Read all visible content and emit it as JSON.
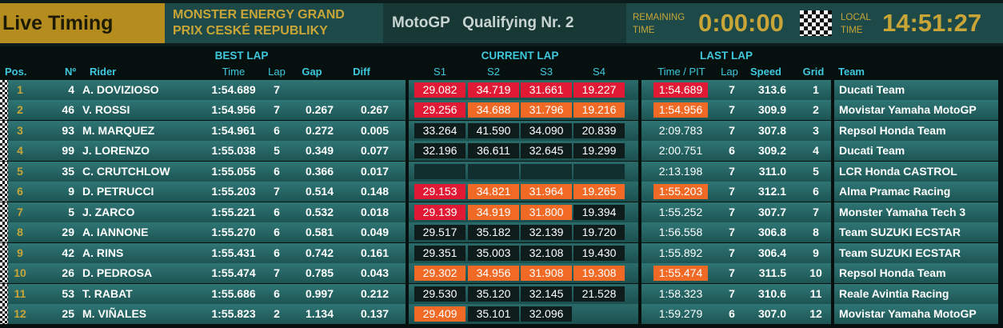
{
  "header": {
    "title": "Live Timing",
    "event_line1": "MONSTER ENERGY GRAND",
    "event_line2": "PRIX CESKÉ REPUBLIKY",
    "category": "MotoGP",
    "session": "Qualifying Nr. 2",
    "remaining_label_1": "REMAINING",
    "remaining_label_2": "TIME",
    "remaining_time": "0:00:00",
    "flag_icon": "checkered-flag-icon",
    "local_label_1": "LOCAL",
    "local_label_2": "TIME",
    "local_time": "14:51:27"
  },
  "groups": {
    "best_lap": "BEST LAP",
    "current_lap": "CURRENT LAP",
    "last_lap": "LAST LAP"
  },
  "columns": {
    "pos": "Pos.",
    "num": "Nº",
    "rider": "Rider",
    "best_time": "Time",
    "best_lap": "Lap",
    "gap": "Gap",
    "diff": "Diff",
    "s1": "S1",
    "s2": "S2",
    "s3": "S3",
    "s4": "S4",
    "time_pit": "Time / PIT",
    "last_lap": "Lap",
    "speed": "Speed",
    "grid": "Grid",
    "team": "Team"
  },
  "status_colors": {
    "red": "#e01a34",
    "orange": "#f06a26",
    "dark": "#0f1c1c",
    "empty": "#102f2e"
  },
  "rows": [
    {
      "pos": "1",
      "num": "4",
      "rider": "A. DOVIZIOSO",
      "best_time": "1:54.689",
      "best_lap": "7",
      "gap": "",
      "diff": "",
      "sectors": [
        {
          "t": "29.082",
          "s": "red"
        },
        {
          "t": "34.719",
          "s": "red"
        },
        {
          "t": "31.661",
          "s": "red"
        },
        {
          "t": "19.227",
          "s": "red"
        }
      ],
      "last_time": "1:54.689",
      "last_status": "red",
      "last_lap": "7",
      "speed": "313.6",
      "grid": "1",
      "team": "Ducati Team"
    },
    {
      "pos": "2",
      "num": "46",
      "rider": "V. ROSSI",
      "best_time": "1:54.956",
      "best_lap": "7",
      "gap": "0.267",
      "diff": "0.267",
      "sectors": [
        {
          "t": "29.256",
          "s": "red"
        },
        {
          "t": "34.688",
          "s": "orange"
        },
        {
          "t": "31.796",
          "s": "orange"
        },
        {
          "t": "19.216",
          "s": "orange"
        }
      ],
      "last_time": "1:54.956",
      "last_status": "orange",
      "last_lap": "7",
      "speed": "309.9",
      "grid": "2",
      "team": "Movistar Yamaha MotoGP"
    },
    {
      "pos": "3",
      "num": "93",
      "rider": "M. MARQUEZ",
      "best_time": "1:54.961",
      "best_lap": "6",
      "gap": "0.272",
      "diff": "0.005",
      "sectors": [
        {
          "t": "33.264",
          "s": "dark"
        },
        {
          "t": "41.590",
          "s": "dark"
        },
        {
          "t": "34.090",
          "s": "dark"
        },
        {
          "t": "20.839",
          "s": "dark"
        }
      ],
      "last_time": "2:09.783",
      "last_status": "",
      "last_lap": "7",
      "speed": "307.8",
      "grid": "3",
      "team": "Repsol Honda Team"
    },
    {
      "pos": "4",
      "num": "99",
      "rider": "J. LORENZO",
      "best_time": "1:55.038",
      "best_lap": "5",
      "gap": "0.349",
      "diff": "0.077",
      "sectors": [
        {
          "t": "32.196",
          "s": "dark"
        },
        {
          "t": "36.611",
          "s": "dark"
        },
        {
          "t": "32.645",
          "s": "dark"
        },
        {
          "t": "19.299",
          "s": "dark"
        }
      ],
      "last_time": "2:00.751",
      "last_status": "",
      "last_lap": "6",
      "speed": "309.2",
      "grid": "4",
      "team": "Ducati Team"
    },
    {
      "pos": "5",
      "num": "35",
      "rider": "C. CRUTCHLOW",
      "best_time": "1:55.055",
      "best_lap": "6",
      "gap": "0.366",
      "diff": "0.017",
      "sectors": [
        {
          "t": "",
          "s": "empty"
        },
        {
          "t": "",
          "s": "empty"
        },
        {
          "t": "",
          "s": "empty"
        },
        {
          "t": "",
          "s": "empty"
        }
      ],
      "last_time": "2:13.198",
      "last_status": "",
      "last_lap": "7",
      "speed": "311.0",
      "grid": "5",
      "team": "LCR Honda CASTROL"
    },
    {
      "pos": "6",
      "num": "9",
      "rider": "D. PETRUCCI",
      "best_time": "1:55.203",
      "best_lap": "7",
      "gap": "0.514",
      "diff": "0.148",
      "sectors": [
        {
          "t": "29.153",
          "s": "red"
        },
        {
          "t": "34.821",
          "s": "orange"
        },
        {
          "t": "31.964",
          "s": "orange"
        },
        {
          "t": "19.265",
          "s": "orange"
        }
      ],
      "last_time": "1:55.203",
      "last_status": "orange",
      "last_lap": "7",
      "speed": "312.1",
      "grid": "6",
      "team": "Alma Pramac Racing"
    },
    {
      "pos": "7",
      "num": "5",
      "rider": "J. ZARCO",
      "best_time": "1:55.221",
      "best_lap": "6",
      "gap": "0.532",
      "diff": "0.018",
      "sectors": [
        {
          "t": "29.139",
          "s": "red"
        },
        {
          "t": "34.919",
          "s": "orange"
        },
        {
          "t": "31.800",
          "s": "orange"
        },
        {
          "t": "19.394",
          "s": "dark"
        }
      ],
      "last_time": "1:55.252",
      "last_status": "",
      "last_lap": "7",
      "speed": "307.7",
      "grid": "7",
      "team": "Monster Yamaha Tech 3"
    },
    {
      "pos": "8",
      "num": "29",
      "rider": "A. IANNONE",
      "best_time": "1:55.270",
      "best_lap": "6",
      "gap": "0.581",
      "diff": "0.049",
      "sectors": [
        {
          "t": "29.517",
          "s": "dark"
        },
        {
          "t": "35.182",
          "s": "dark"
        },
        {
          "t": "32.139",
          "s": "dark"
        },
        {
          "t": "19.720",
          "s": "dark"
        }
      ],
      "last_time": "1:56.558",
      "last_status": "",
      "last_lap": "7",
      "speed": "306.8",
      "grid": "8",
      "team": "Team SUZUKI ECSTAR"
    },
    {
      "pos": "9",
      "num": "42",
      "rider": "A. RINS",
      "best_time": "1:55.431",
      "best_lap": "6",
      "gap": "0.742",
      "diff": "0.161",
      "sectors": [
        {
          "t": "29.351",
          "s": "dark"
        },
        {
          "t": "35.003",
          "s": "dark"
        },
        {
          "t": "32.108",
          "s": "dark"
        },
        {
          "t": "19.430",
          "s": "dark"
        }
      ],
      "last_time": "1:55.892",
      "last_status": "",
      "last_lap": "7",
      "speed": "306.4",
      "grid": "9",
      "team": "Team SUZUKI ECSTAR"
    },
    {
      "pos": "10",
      "num": "26",
      "rider": "D. PEDROSA",
      "best_time": "1:55.474",
      "best_lap": "7",
      "gap": "0.785",
      "diff": "0.043",
      "sectors": [
        {
          "t": "29.302",
          "s": "orange"
        },
        {
          "t": "34.956",
          "s": "orange"
        },
        {
          "t": "31.908",
          "s": "orange"
        },
        {
          "t": "19.308",
          "s": "orange"
        }
      ],
      "last_time": "1:55.474",
      "last_status": "orange",
      "last_lap": "7",
      "speed": "311.5",
      "grid": "10",
      "team": "Repsol Honda Team"
    },
    {
      "pos": "11",
      "num": "53",
      "rider": "T. RABAT",
      "best_time": "1:55.686",
      "best_lap": "6",
      "gap": "0.997",
      "diff": "0.212",
      "sectors": [
        {
          "t": "29.530",
          "s": "dark"
        },
        {
          "t": "35.120",
          "s": "dark"
        },
        {
          "t": "32.145",
          "s": "dark"
        },
        {
          "t": "21.528",
          "s": "dark"
        }
      ],
      "last_time": "1:58.323",
      "last_status": "",
      "last_lap": "7",
      "speed": "310.6",
      "grid": "11",
      "team": "Reale Avintia Racing"
    },
    {
      "pos": "12",
      "num": "25",
      "rider": "M. VIÑALES",
      "best_time": "1:55.823",
      "best_lap": "2",
      "gap": "1.134",
      "diff": "0.137",
      "sectors": [
        {
          "t": "29.409",
          "s": "orange"
        },
        {
          "t": "35.101",
          "s": "dark"
        },
        {
          "t": "32.096",
          "s": "dark"
        },
        {
          "t": "",
          "s": "none"
        }
      ],
      "last_time": "1:59.279",
      "last_status": "",
      "last_lap": "6",
      "speed": "307.0",
      "grid": "12",
      "team": "Movistar Yamaha MotoGP"
    }
  ]
}
